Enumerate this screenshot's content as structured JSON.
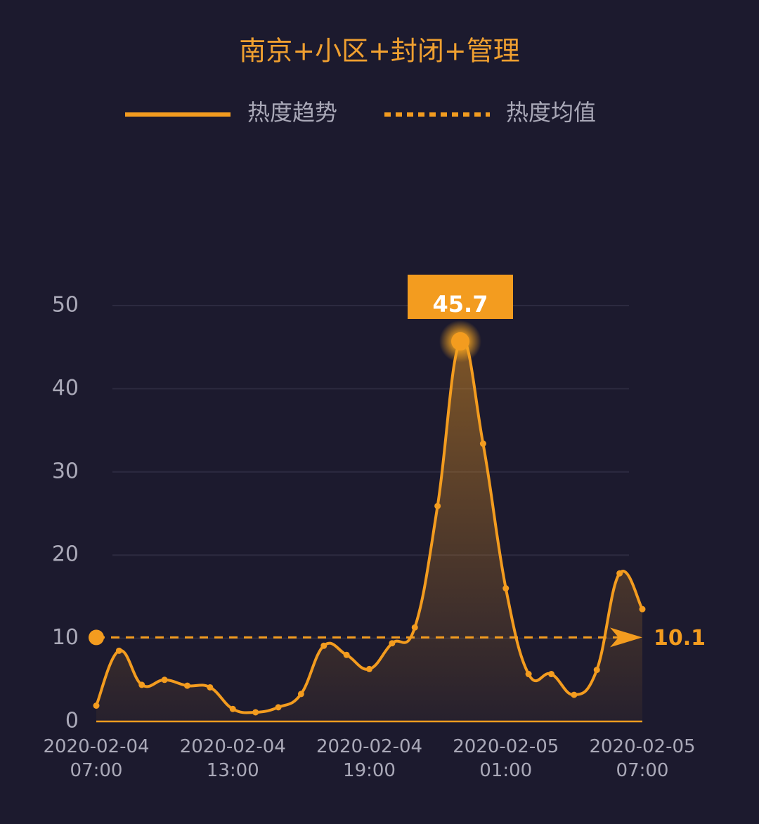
{
  "chart_data": {
    "type": "line",
    "title": "南京+小区+封闭+管理",
    "categories": [
      "2020-02-04 07:00",
      null,
      null,
      null,
      null,
      null,
      "2020-02-04 13:00",
      null,
      null,
      null,
      null,
      null,
      "2020-02-04 19:00",
      null,
      null,
      null,
      null,
      null,
      "2020-02-05 01:00",
      null,
      null,
      null,
      null,
      null,
      "2020-02-05 07:00"
    ],
    "series": [
      {
        "name": "热度趋势",
        "color": "#f39c1f",
        "values": [
          1.9,
          8.5,
          4.4,
          5.0,
          4.3,
          4.1,
          1.5,
          1.1,
          1.7,
          3.3,
          9.1,
          8.0,
          6.3,
          9.4,
          11.3,
          25.9,
          45.7,
          33.4,
          16.0,
          5.7,
          5.7,
          3.2,
          6.2,
          17.8,
          13.5
        ]
      }
    ],
    "mean": {
      "name": "热度均值",
      "value": 10.1
    },
    "peak_value": 45.7,
    "ylim": [
      0,
      50
    ],
    "yticks": [
      0,
      10,
      20,
      30,
      40,
      50
    ],
    "grid": true,
    "legend": "top"
  }
}
